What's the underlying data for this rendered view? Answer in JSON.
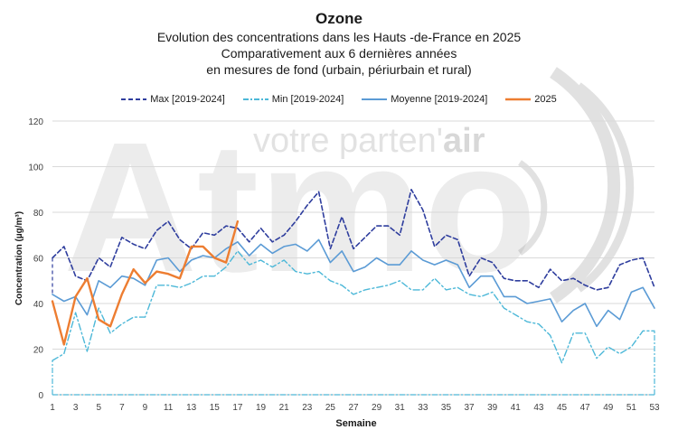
{
  "chart_data": {
    "type": "line",
    "title": "Ozone",
    "subtitle_lines": [
      "Evolution des concentrations dans les Hauts -de-France en 2025",
      "Comparativement aux 6 dernières années",
      "en mesures de fond (urbain, périurbain et rural)"
    ],
    "xlabel": "Semaine",
    "ylabel": "Concentration (µg/m³)",
    "ylim": [
      0,
      120
    ],
    "yticks": [
      0,
      20,
      40,
      60,
      80,
      100,
      120
    ],
    "xlim": [
      1,
      53
    ],
    "xticks": [
      1,
      3,
      5,
      7,
      9,
      11,
      13,
      15,
      17,
      19,
      21,
      23,
      25,
      27,
      29,
      31,
      33,
      35,
      37,
      39,
      41,
      43,
      45,
      47,
      49,
      51,
      53
    ],
    "grid": true,
    "legend_position": "top",
    "x": [
      1,
      2,
      3,
      4,
      5,
      6,
      7,
      8,
      9,
      10,
      11,
      12,
      13,
      14,
      15,
      16,
      17,
      18,
      19,
      20,
      21,
      22,
      23,
      24,
      25,
      26,
      27,
      28,
      29,
      30,
      31,
      32,
      33,
      34,
      35,
      36,
      37,
      38,
      39,
      40,
      41,
      42,
      43,
      44,
      45,
      46,
      47,
      48,
      49,
      50,
      51,
      52,
      53
    ],
    "series": [
      {
        "name": "Max [2019-2024]",
        "color": "#2f3e9e",
        "style": "dashed",
        "values": [
          60,
          65,
          52,
          50,
          60,
          56,
          69,
          66,
          64,
          72,
          76,
          68,
          64,
          71,
          70,
          74,
          73,
          67,
          73,
          67,
          70,
          76,
          83,
          89,
          64,
          78,
          64,
          69,
          74,
          74,
          70,
          90,
          81,
          65,
          70,
          68,
          52,
          60,
          58,
          51,
          50,
          50,
          47,
          55,
          50,
          51,
          48,
          46,
          47,
          57,
          59,
          60,
          47
        ]
      },
      {
        "name": "Min [2019-2024]",
        "color": "#4db8d8",
        "style": "dashdot",
        "values": [
          15,
          18,
          36,
          19,
          38,
          27,
          31,
          34,
          34,
          48,
          48,
          47,
          49,
          52,
          52,
          56,
          63,
          57,
          59,
          56,
          59,
          54,
          53,
          54,
          50,
          48,
          44,
          46,
          47,
          48,
          50,
          46,
          46,
          51,
          46,
          47,
          44,
          43,
          45,
          38,
          35,
          32,
          31,
          26,
          14,
          27,
          27,
          16,
          21,
          18,
          21,
          28,
          28
        ]
      },
      {
        "name": "Moyenne [2019-2024]",
        "color": "#5b9bd5",
        "style": "solid",
        "values": [
          44,
          41,
          43,
          35,
          50,
          47,
          52,
          51,
          48,
          59,
          60,
          54,
          59,
          61,
          60,
          64,
          67,
          61,
          66,
          62,
          65,
          66,
          63,
          68,
          58,
          63,
          54,
          56,
          60,
          57,
          57,
          63,
          59,
          57,
          59,
          57,
          47,
          52,
          52,
          43,
          43,
          40,
          41,
          42,
          32,
          37,
          40,
          30,
          37,
          33,
          45,
          47,
          38
        ]
      },
      {
        "name": "2025",
        "color": "#ed7d31",
        "style": "solid",
        "values": [
          41,
          22,
          43,
          51,
          33,
          30,
          44,
          55,
          49,
          54,
          53,
          51,
          65,
          65,
          60,
          58,
          76,
          null,
          null,
          null,
          null,
          null,
          null,
          null,
          null,
          null,
          null,
          null,
          null,
          null,
          null,
          null,
          null,
          null,
          null,
          null,
          null,
          null,
          null,
          null,
          null,
          null,
          null,
          null,
          null,
          null,
          null,
          null,
          null,
          null,
          null,
          null,
          null
        ]
      }
    ],
    "baseline_series": {
      "values_note": "",
      "values": [
        0,
        0
      ]
    }
  },
  "watermark": {
    "logo_text": "Atmo",
    "tagline_main": "votre parten'",
    "tagline_accent": "air"
  }
}
